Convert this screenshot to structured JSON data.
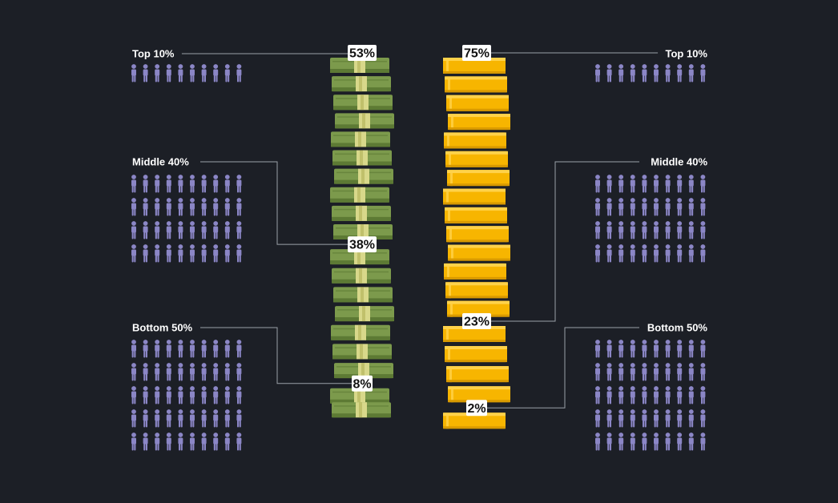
{
  "chart_data": [
    {
      "type": "bar",
      "categories": [
        "Top 10%",
        "Middle 40%",
        "Bottom 50%"
      ],
      "values": [
        53,
        38,
        8
      ],
      "unit": "%",
      "icon": "cash-bundle-icon"
    },
    {
      "type": "bar",
      "categories": [
        "Top 10%",
        "Middle 40%",
        "Bottom 50%"
      ],
      "values": [
        75,
        23,
        2
      ],
      "unit": "%",
      "icon": "gold-bar-icon"
    }
  ],
  "population": {
    "groups": [
      "Top 10%",
      "Middle 40%",
      "Bottom 50%"
    ],
    "people_rows": [
      1,
      4,
      5
    ],
    "people_per_row": 10,
    "icon": "person-icon"
  },
  "colors": {
    "background": "#1c1f26",
    "person": "#8b86c6",
    "cash": "#7c9a4c",
    "cash_dark": "#5d7a34",
    "cash_band": "#d8d88a",
    "gold": "#f7b500",
    "gold_light": "#ffd24a",
    "leader": "#9aa0a8",
    "label": "#ffffff",
    "badge": "#ffffff"
  }
}
